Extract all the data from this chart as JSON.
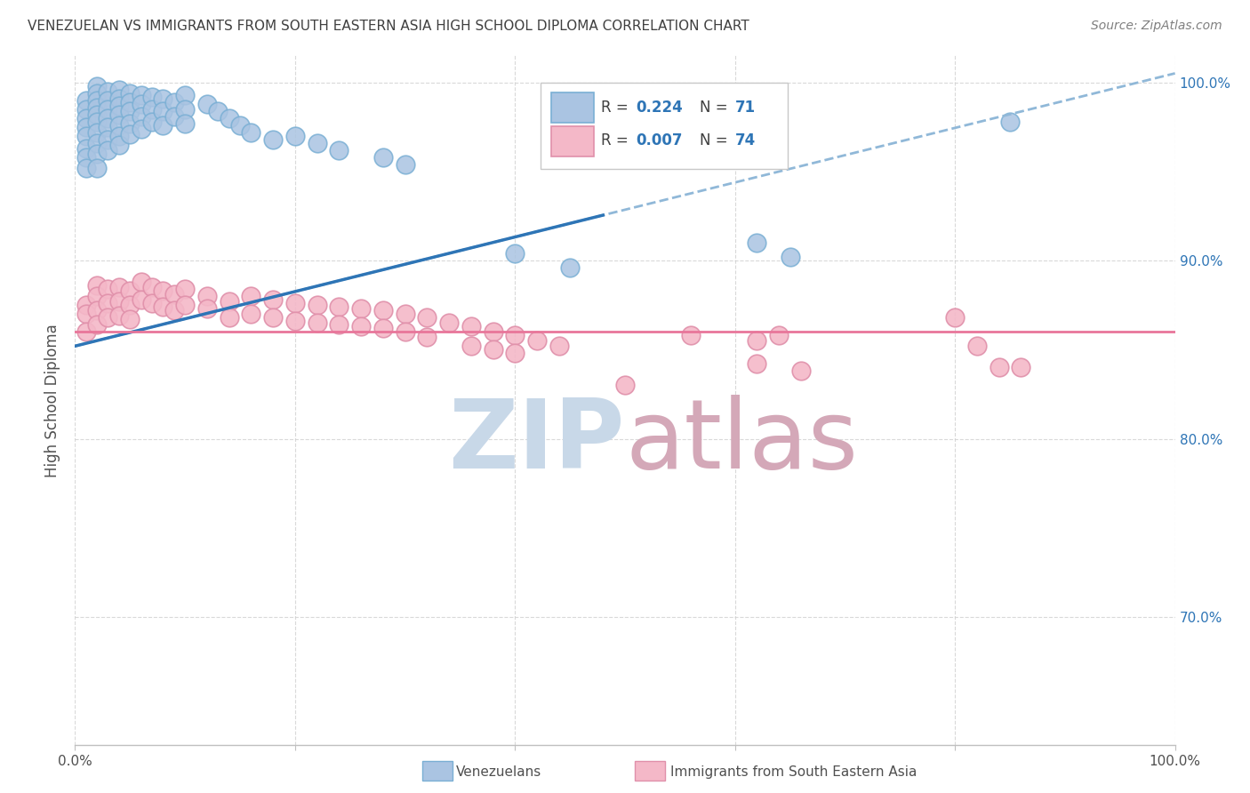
{
  "title": "VENEZUELAN VS IMMIGRANTS FROM SOUTH EASTERN ASIA HIGH SCHOOL DIPLOMA CORRELATION CHART",
  "source": "Source: ZipAtlas.com",
  "ylabel": "High School Diploma",
  "x_min": 0.0,
  "x_max": 1.0,
  "y_min": 0.628,
  "y_max": 1.015,
  "right_yticks": [
    0.7,
    0.8,
    0.9,
    1.0
  ],
  "right_yticklabels": [
    "70.0%",
    "80.0%",
    "90.0%",
    "100.0%"
  ],
  "blue_color": "#aac4e2",
  "blue_line_color": "#2e75b6",
  "blue_edge_color": "#7aafd4",
  "pink_color": "#f4b8c8",
  "pink_line_color": "#e8769a",
  "pink_edge_color": "#e090aa",
  "blue_trendline_dashed_color": "#90b8d8",
  "legend_text_color": "#2e75b6",
  "title_color": "#404040",
  "source_color": "#808080",
  "watermark_zip_color": "#c8d8e8",
  "watermark_atlas_color": "#d4a8b8",
  "grid_color": "#d0d0d0",
  "venezuelans_x": [
    0.01,
    0.01,
    0.01,
    0.01,
    0.01,
    0.01,
    0.01,
    0.01,
    0.02,
    0.02,
    0.02,
    0.02,
    0.02,
    0.02,
    0.02,
    0.02,
    0.02,
    0.02,
    0.03,
    0.03,
    0.03,
    0.03,
    0.03,
    0.03,
    0.03,
    0.04,
    0.04,
    0.04,
    0.04,
    0.04,
    0.04,
    0.04,
    0.05,
    0.05,
    0.05,
    0.05,
    0.05,
    0.06,
    0.06,
    0.06,
    0.06,
    0.07,
    0.07,
    0.07,
    0.08,
    0.08,
    0.08,
    0.09,
    0.09,
    0.1,
    0.1,
    0.1,
    0.12,
    0.13,
    0.14,
    0.15,
    0.16,
    0.18,
    0.2,
    0.22,
    0.24,
    0.28,
    0.3,
    0.4,
    0.45,
    0.62,
    0.65,
    0.85
  ],
  "venezuelans_y": [
    0.99,
    0.985,
    0.98,
    0.975,
    0.97,
    0.963,
    0.958,
    0.952,
    0.998,
    0.994,
    0.99,
    0.986,
    0.982,
    0.978,
    0.972,
    0.966,
    0.96,
    0.952,
    0.995,
    0.99,
    0.985,
    0.98,
    0.975,
    0.968,
    0.962,
    0.996,
    0.991,
    0.987,
    0.982,
    0.976,
    0.97,
    0.965,
    0.994,
    0.989,
    0.984,
    0.977,
    0.971,
    0.993,
    0.988,
    0.981,
    0.974,
    0.992,
    0.985,
    0.978,
    0.991,
    0.984,
    0.976,
    0.989,
    0.981,
    0.993,
    0.985,
    0.977,
    0.988,
    0.984,
    0.98,
    0.976,
    0.972,
    0.968,
    0.97,
    0.966,
    0.962,
    0.958,
    0.954,
    0.904,
    0.896,
    0.91,
    0.902,
    0.978
  ],
  "sea_x": [
    0.01,
    0.01,
    0.01,
    0.02,
    0.02,
    0.02,
    0.02,
    0.03,
    0.03,
    0.03,
    0.04,
    0.04,
    0.04,
    0.05,
    0.05,
    0.05,
    0.06,
    0.06,
    0.07,
    0.07,
    0.08,
    0.08,
    0.09,
    0.09,
    0.1,
    0.1,
    0.12,
    0.12,
    0.14,
    0.14,
    0.16,
    0.16,
    0.18,
    0.18,
    0.2,
    0.2,
    0.22,
    0.22,
    0.24,
    0.24,
    0.26,
    0.26,
    0.28,
    0.28,
    0.3,
    0.3,
    0.32,
    0.32,
    0.34,
    0.36,
    0.36,
    0.38,
    0.38,
    0.4,
    0.4,
    0.42,
    0.44,
    0.5,
    0.56,
    0.62,
    0.62,
    0.64,
    0.66,
    0.8,
    0.82,
    0.84,
    0.86
  ],
  "sea_y": [
    0.875,
    0.87,
    0.86,
    0.886,
    0.88,
    0.872,
    0.864,
    0.884,
    0.876,
    0.868,
    0.885,
    0.877,
    0.869,
    0.883,
    0.875,
    0.867,
    0.888,
    0.878,
    0.885,
    0.876,
    0.883,
    0.874,
    0.881,
    0.872,
    0.884,
    0.875,
    0.88,
    0.873,
    0.877,
    0.868,
    0.88,
    0.87,
    0.878,
    0.868,
    0.876,
    0.866,
    0.875,
    0.865,
    0.874,
    0.864,
    0.873,
    0.863,
    0.872,
    0.862,
    0.87,
    0.86,
    0.868,
    0.857,
    0.865,
    0.863,
    0.852,
    0.86,
    0.85,
    0.858,
    0.848,
    0.855,
    0.852,
    0.83,
    0.858,
    0.855,
    0.842,
    0.858,
    0.838,
    0.868,
    0.852,
    0.84,
    0.84
  ],
  "blue_line_solid_end": 0.48,
  "blue_line_start_y": 0.852,
  "blue_line_end_y": 1.005,
  "pink_line_y": 0.86
}
